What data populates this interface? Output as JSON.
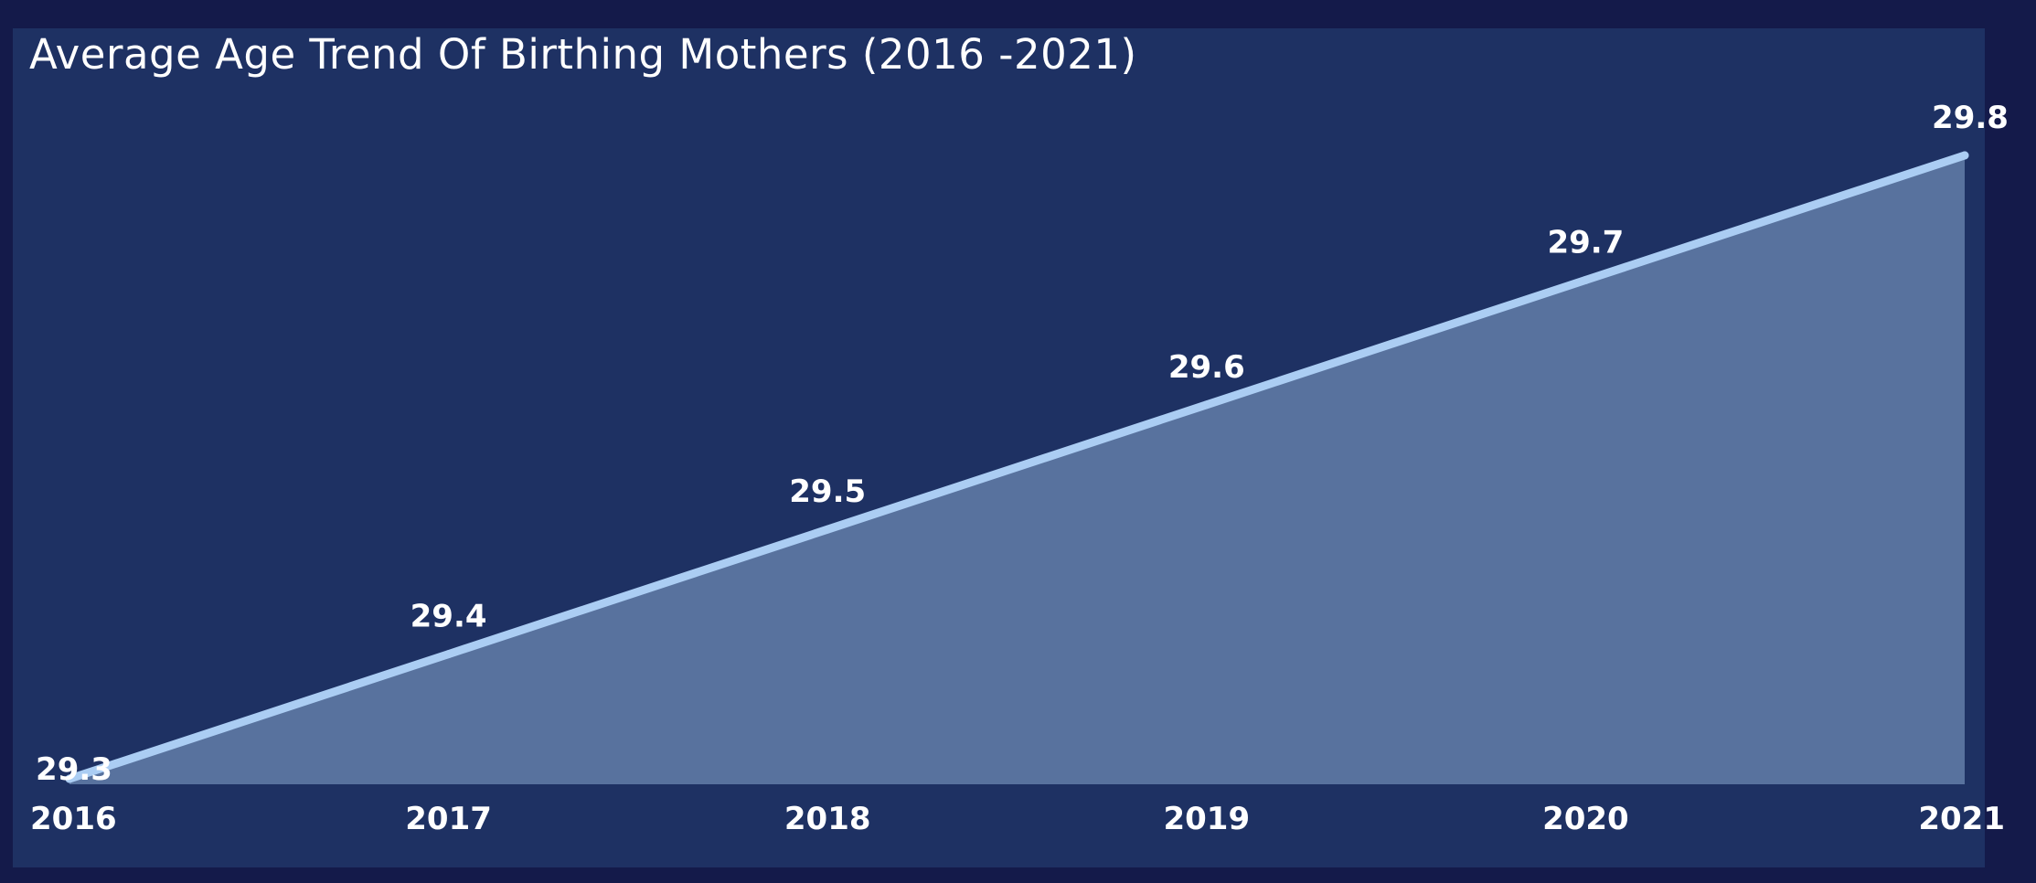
{
  "chart_data": {
    "type": "area",
    "title": "Average Age Trend Of Birthing Mothers (2016 -2021)",
    "xlabel": "",
    "ylabel": "",
    "categories": [
      "2016",
      "2017",
      "2018",
      "2019",
      "2020",
      "2021"
    ],
    "series": [
      {
        "values": [
          29.3,
          29.4,
          29.5,
          29.6,
          29.7,
          29.8
        ],
        "labels": [
          "29.3",
          "29.4",
          "29.5",
          "29.6",
          "29.7",
          "29.8"
        ]
      }
    ],
    "grid": false,
    "legend": "none",
    "colors": {
      "page_background": "#141a4a",
      "panel_background": "#1e3163",
      "line": "#abcdf3",
      "area_fill": "#58729e",
      "text": "#ffffff"
    }
  }
}
